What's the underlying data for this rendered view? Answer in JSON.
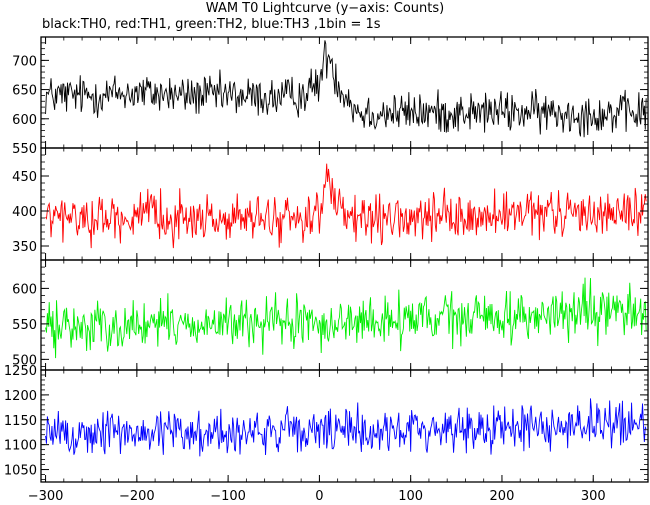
{
  "header": {
    "title": "WAM T0 Lightcurve (y−axis: Counts)",
    "subtitle": "black:TH0, red:TH1, green:TH2, blue:TH3 ,1bin = 1s"
  },
  "chart_data": {
    "type": "line",
    "title": "WAM T0 Lightcurve (y−axis: Counts)",
    "subtitle": "black:TH0, red:TH1, green:TH2, blue:TH3 ,1bin = 1s",
    "xlabel": "",
    "xlim": [
      -305,
      360
    ],
    "xticks": [
      -300,
      -200,
      -100,
      0,
      100,
      200,
      300
    ],
    "bin": 1,
    "panels": [
      {
        "name": "TH0",
        "color": "#000000",
        "ylim": [
          550,
          740
        ],
        "yticks": [
          550,
          600,
          650,
          700
        ],
        "x": [
          -300,
          -250,
          -200,
          -150,
          -100,
          -50,
          -20,
          0,
          5,
          10,
          15,
          20,
          30,
          40,
          50,
          100,
          150,
          200,
          250,
          300,
          358
        ],
        "values": [
          640,
          640,
          645,
          640,
          640,
          635,
          640,
          660,
          700,
          710,
          690,
          660,
          640,
          615,
          610,
          610,
          610,
          612,
          610,
          608,
          610
        ],
        "noise_amplitude": 30
      },
      {
        "name": "TH1",
        "color": "#ff0000",
        "ylim": [
          330,
          490
        ],
        "yticks": [
          350,
          400,
          450
        ],
        "x": [
          -300,
          -250,
          -200,
          -150,
          -100,
          -50,
          -20,
          0,
          5,
          10,
          15,
          20,
          30,
          40,
          50,
          100,
          150,
          200,
          250,
          300,
          358
        ],
        "values": [
          390,
          390,
          392,
          390,
          388,
          388,
          390,
          400,
          425,
          440,
          425,
          400,
          390,
          385,
          385,
          388,
          390,
          392,
          395,
          398,
          400
        ],
        "noise_amplitude": 28
      },
      {
        "name": "TH2",
        "color": "#00ee00",
        "ylim": [
          485,
          640
        ],
        "yticks": [
          500,
          550,
          600
        ],
        "x": [
          -300,
          -200,
          -100,
          0,
          100,
          200,
          300,
          358
        ],
        "values": [
          545,
          548,
          550,
          550,
          555,
          560,
          565,
          570
        ],
        "noise_amplitude": 30
      },
      {
        "name": "TH3",
        "color": "#0000ff",
        "ylim": [
          1025,
          1250
        ],
        "yticks": [
          1050,
          1100,
          1150,
          1200,
          1250
        ],
        "x": [
          -300,
          -200,
          -100,
          0,
          100,
          200,
          300,
          358
        ],
        "values": [
          1120,
          1125,
          1125,
          1125,
          1130,
          1135,
          1140,
          1140
        ],
        "noise_amplitude": 40
      }
    ]
  }
}
